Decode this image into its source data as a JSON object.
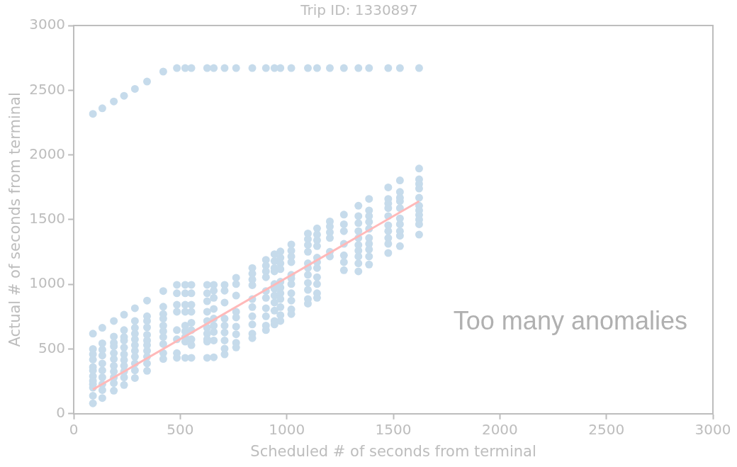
{
  "chart_data": {
    "type": "scatter",
    "title": "Trip ID: 1330897",
    "xlabel": "Scheduled # of seconds from terminal",
    "ylabel": "Actual # of seconds from terminal",
    "xlim": [
      0,
      3000
    ],
    "ylim": [
      0,
      3000
    ],
    "xticks": [
      0,
      500,
      1000,
      1500,
      2000,
      2500,
      3000
    ],
    "yticks": [
      0,
      500,
      1000,
      1500,
      2000,
      2500,
      3000
    ],
    "grid": false,
    "legend": false,
    "marker": "circle",
    "annotations": [
      "Too many anomalies"
    ],
    "series": [
      {
        "color": "#c6dbeb",
        "x": [
          90,
          134,
          188,
          236,
          287,
          344,
          420,
          484,
          523,
          552,
          626,
          657,
          708,
          762,
          838,
          902,
          942,
          970,
          1021,
          1099,
          1142,
          1202,
          1268,
          1336,
          1386,
          1476,
          1531,
          1621
        ],
        "values": [
          2317,
          2360,
          2413,
          2457,
          2510,
          2567,
          2644,
          2671,
          2671,
          2671,
          2671,
          2671,
          2671,
          2671,
          2671,
          2671,
          2671,
          2671,
          2671,
          2671,
          2671,
          2671,
          2671,
          2671,
          2671,
          2671,
          2671,
          2671
        ]
      },
      {
        "color": "#c6dbeb",
        "x": [
          90,
          90,
          90,
          90,
          90,
          90,
          90,
          90,
          90,
          90,
          90,
          90,
          134,
          134,
          134,
          134,
          134,
          134,
          134,
          134,
          134,
          134,
          188,
          188,
          188,
          188,
          188,
          188,
          188,
          188,
          188,
          188,
          188,
          236,
          236,
          236,
          236,
          236,
          236,
          236,
          236,
          236,
          236,
          236,
          287,
          287,
          287,
          287,
          287,
          287,
          287,
          287,
          287,
          287,
          287,
          344,
          344,
          344,
          344,
          344,
          344,
          344,
          344,
          344,
          344,
          344,
          420,
          420,
          420,
          420,
          420,
          420,
          420,
          420,
          420,
          420,
          484,
          484,
          484,
          484,
          484,
          484,
          484,
          484,
          523,
          523,
          523,
          523,
          523,
          523,
          523,
          523,
          523,
          552,
          552,
          552,
          552,
          552,
          552,
          552,
          552,
          552,
          626,
          626,
          626,
          626,
          626,
          626,
          626,
          626,
          626,
          626,
          657,
          657,
          657,
          657,
          657,
          657,
          657,
          657,
          657,
          708,
          708,
          708,
          708,
          708,
          708,
          708,
          708,
          708,
          762,
          762,
          762,
          762,
          762,
          762,
          762,
          762,
          762,
          838,
          838,
          838,
          838,
          838,
          838,
          838,
          838,
          838,
          838,
          902,
          902,
          902,
          902,
          902,
          902,
          902,
          902,
          902,
          902,
          942,
          942,
          942,
          942,
          942,
          942,
          942,
          942,
          942,
          942,
          942,
          970,
          970,
          970,
          970,
          970,
          970,
          970,
          970,
          970,
          970,
          970,
          1021,
          1021,
          1021,
          1021,
          1021,
          1021,
          1021,
          1021,
          1021,
          1021,
          1021,
          1099,
          1099,
          1099,
          1099,
          1099,
          1099,
          1099,
          1099,
          1099,
          1099,
          1099,
          1142,
          1142,
          1142,
          1142,
          1142,
          1142,
          1142,
          1142,
          1142,
          1142,
          1142,
          1202,
          1202,
          1202,
          1202,
          1202,
          1202,
          1268,
          1268,
          1268,
          1268,
          1268,
          1268,
          1268,
          1336,
          1336,
          1336,
          1336,
          1336,
          1336,
          1336,
          1336,
          1336,
          1336,
          1386,
          1386,
          1386,
          1386,
          1386,
          1386,
          1386,
          1386,
          1386,
          1386,
          1476,
          1476,
          1476,
          1476,
          1476,
          1476,
          1476,
          1476,
          1476,
          1476,
          1531,
          1531,
          1531,
          1531,
          1531,
          1531,
          1531,
          1531,
          1531,
          1531,
          1621,
          1621,
          1621,
          1621,
          1621,
          1621,
          1621,
          1621,
          1621,
          1621,
          1621
        ],
        "values": [
          619,
          500,
          459,
          418,
          361,
          335,
          290,
          254,
          228,
          201,
          139,
          80,
          664,
          544,
          495,
          450,
          388,
          335,
          281,
          228,
          183,
          121,
          717,
          596,
          548,
          521,
          468,
          423,
          370,
          326,
          281,
          237,
          178,
          765,
          646,
          593,
          566,
          512,
          459,
          415,
          370,
          326,
          281,
          222,
          815,
          717,
          664,
          619,
          575,
          530,
          486,
          441,
          388,
          335,
          276,
          874,
          753,
          717,
          667,
          610,
          566,
          530,
          486,
          441,
          388,
          331,
          948,
          827,
          770,
          735,
          681,
          637,
          593,
          539,
          468,
          423,
          996,
          931,
          842,
          788,
          646,
          575,
          468,
          432,
          996,
          931,
          842,
          788,
          681,
          637,
          593,
          557,
          432,
          996,
          931,
          842,
          788,
          703,
          646,
          575,
          530,
          432,
          996,
          931,
          869,
          788,
          717,
          664,
          619,
          575,
          557,
          432,
          996,
          951,
          895,
          810,
          735,
          681,
          632,
          566,
          436,
          996,
          951,
          859,
          735,
          681,
          628,
          566,
          503,
          459,
          1051,
          1002,
          913,
          788,
          744,
          673,
          614,
          548,
          512,
          1126,
          1082,
          1037,
          993,
          886,
          824,
          753,
          690,
          619,
          584,
          1189,
          1144,
          1100,
          1055,
          948,
          895,
          815,
          753,
          681,
          646,
          1233,
          1180,
          1126,
          1100,
          1002,
          966,
          913,
          859,
          797,
          717,
          690,
          1254,
          1206,
          1162,
          1117,
          1020,
          975,
          931,
          886,
          824,
          762,
          717,
          1308,
          1260,
          1215,
          1171,
          1073,
          1046,
          1002,
          931,
          874,
          806,
          770,
          1393,
          1349,
          1304,
          1251,
          1162,
          1126,
          1073,
          1011,
          957,
          886,
          851,
          1432,
          1384,
          1340,
          1295,
          1206,
          1171,
          1126,
          1055,
          1002,
          931,
          895,
          1486,
          1447,
          1402,
          1358,
          1251,
          1215,
          1539,
          1464,
          1411,
          1313,
          1224,
          1171,
          1109,
          1607,
          1527,
          1473,
          1411,
          1358,
          1304,
          1260,
          1215,
          1162,
          1100,
          1660,
          1571,
          1527,
          1482,
          1429,
          1358,
          1313,
          1269,
          1215,
          1153,
          1749,
          1660,
          1624,
          1589,
          1527,
          1456,
          1411,
          1358,
          1313,
          1242,
          1803,
          1714,
          1669,
          1642,
          1589,
          1509,
          1464,
          1411,
          1375,
          1295,
          1895,
          1811,
          1776,
          1740,
          1669,
          1607,
          1571,
          1536,
          1500,
          1464,
          1384
        ]
      },
      {
        "type": "line",
        "color": "#ffb9b9",
        "x": [
          90,
          1621
        ],
        "values": [
          187,
          1642
        ],
        "marker": "none"
      }
    ]
  }
}
